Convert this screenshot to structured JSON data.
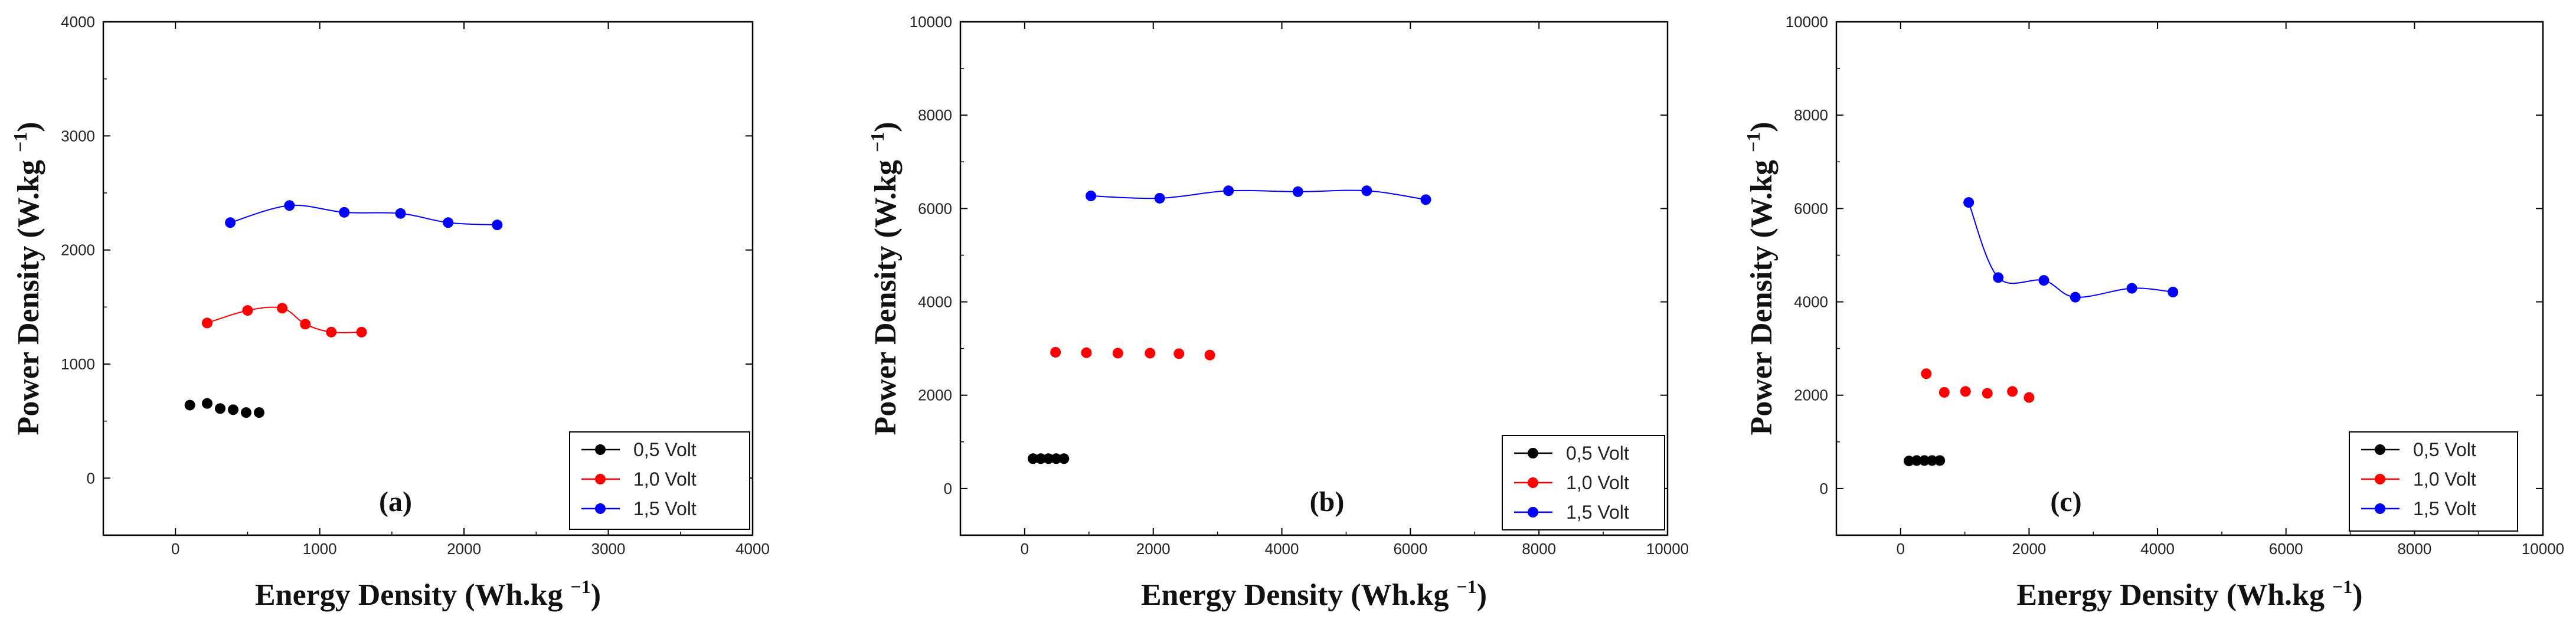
{
  "series_colors": {
    "s05": "#000000",
    "s10": "#ff0000",
    "s15": "#0000ff"
  },
  "chart_data": [
    {
      "type": "line",
      "panel_label": "(a)",
      "xlabel": "Energy Density (Wh.kg",
      "ylabel": "Power Density (W.kg",
      "unit_exponent": "−1",
      "xlim": [
        -500,
        4000
      ],
      "ylim": [
        -500,
        4000
      ],
      "xticks": [
        0,
        1000,
        2000,
        3000,
        4000
      ],
      "yticks": [
        0,
        1000,
        2000,
        3000,
        4000
      ],
      "series": [
        {
          "name": "0,5 Volt",
          "key": "s05",
          "line": false,
          "points": [
            [
              100,
              640
            ],
            [
              220,
              655
            ],
            [
              310,
              610
            ],
            [
              400,
              600
            ],
            [
              490,
              575
            ],
            [
              580,
              575
            ]
          ]
        },
        {
          "name": "1,0 Volt",
          "key": "s10",
          "line": true,
          "points": [
            [
              220,
              1360
            ],
            [
              500,
              1470
            ],
            [
              740,
              1490
            ],
            [
              900,
              1350
            ],
            [
              1080,
              1280
            ],
            [
              1290,
              1280
            ]
          ]
        },
        {
          "name": "1,5 Volt",
          "key": "s15",
          "line": true,
          "points": [
            [
              380,
              2240
            ],
            [
              790,
              2390
            ],
            [
              1170,
              2330
            ],
            [
              1560,
              2320
            ],
            [
              1890,
              2240
            ],
            [
              2230,
              2220
            ]
          ]
        }
      ]
    },
    {
      "type": "line",
      "panel_label": "(b)",
      "xlabel": "Energy Density (Wh.kg",
      "ylabel": "Power Density (W.kg",
      "unit_exponent": "−1",
      "xlim": [
        -1000,
        10000
      ],
      "ylim": [
        -1000,
        10000
      ],
      "xticks": [
        0,
        2000,
        4000,
        6000,
        8000,
        10000
      ],
      "yticks": [
        0,
        2000,
        4000,
        6000,
        8000,
        10000
      ],
      "series": [
        {
          "name": "0,5 Volt",
          "key": "s05",
          "line": false,
          "points": [
            [
              130,
              640
            ],
            [
              250,
              640
            ],
            [
              370,
              640
            ],
            [
              490,
              640
            ],
            [
              610,
              640
            ]
          ]
        },
        {
          "name": "1,0 Volt",
          "key": "s10",
          "line": false,
          "points": [
            [
              480,
              2920
            ],
            [
              960,
              2910
            ],
            [
              1450,
              2900
            ],
            [
              1950,
              2900
            ],
            [
              2400,
              2890
            ],
            [
              2880,
              2860
            ]
          ]
        },
        {
          "name": "1,5 Volt",
          "key": "s15",
          "line": true,
          "points": [
            [
              1030,
              6270
            ],
            [
              2100,
              6220
            ],
            [
              3170,
              6380
            ],
            [
              4250,
              6360
            ],
            [
              5320,
              6380
            ],
            [
              6240,
              6190
            ]
          ]
        }
      ]
    },
    {
      "type": "line",
      "panel_label": "(c)",
      "xlabel": "Energy Density (Wh.kg",
      "ylabel": "Power Density (W.kg",
      "unit_exponent": "−1",
      "xlim": [
        -1000,
        10000
      ],
      "ylim": [
        -1000,
        10000
      ],
      "xticks": [
        0,
        2000,
        4000,
        6000,
        8000,
        10000
      ],
      "yticks": [
        0,
        2000,
        4000,
        6000,
        8000,
        10000
      ],
      "series": [
        {
          "name": "0,5 Volt",
          "key": "s05",
          "line": false,
          "points": [
            [
              130,
              590
            ],
            [
              250,
              600
            ],
            [
              370,
              600
            ],
            [
              490,
              600
            ],
            [
              610,
              600
            ]
          ]
        },
        {
          "name": "1,0 Volt",
          "key": "s10",
          "line": false,
          "points": [
            [
              400,
              2460
            ],
            [
              680,
              2060
            ],
            [
              1010,
              2080
            ],
            [
              1350,
              2040
            ],
            [
              1740,
              2080
            ],
            [
              2000,
              1950
            ]
          ]
        },
        {
          "name": "1,5 Volt",
          "key": "s15",
          "line": true,
          "points": [
            [
              1060,
              6130
            ],
            [
              1520,
              4520
            ],
            [
              2230,
              4460
            ],
            [
              2720,
              4100
            ],
            [
              3600,
              4290
            ],
            [
              4240,
              4210
            ]
          ]
        }
      ]
    }
  ]
}
